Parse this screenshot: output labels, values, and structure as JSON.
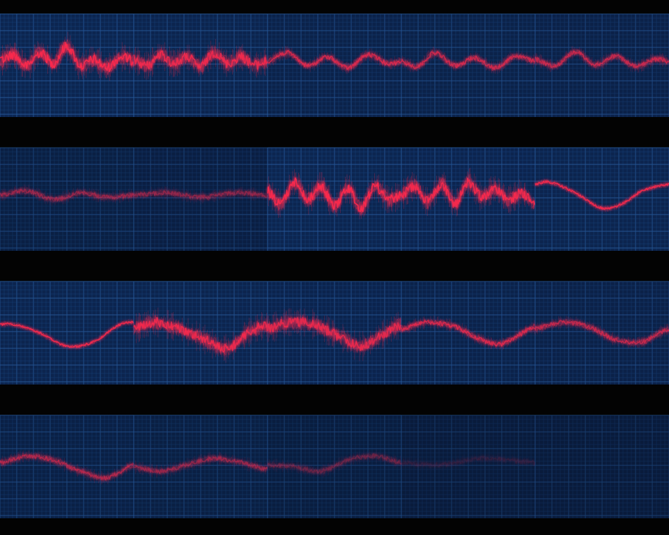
{
  "theme": {
    "background": "#030303",
    "panel_fill": "#0c2550",
    "grid_minor": "#1b4a85",
    "grid_major": "#2b62a8",
    "trace_color": "#ff2a4d"
  },
  "chart_data": [
    {
      "type": "line",
      "row": 1,
      "segments": [
        {
          "brightness": 1.0,
          "shape": "noisy",
          "points": [
            [
              0,
              0.0
            ],
            [
              0.1,
              0.15
            ],
            [
              0.2,
              -0.1
            ],
            [
              0.3,
              0.2
            ],
            [
              0.4,
              -0.05
            ],
            [
              0.5,
              0.35
            ],
            [
              0.6,
              -0.1
            ],
            [
              0.7,
              0.05
            ],
            [
              0.8,
              -0.15
            ],
            [
              0.9,
              0.1
            ],
            [
              1,
              0.0
            ]
          ]
        },
        {
          "brightness": 0.9,
          "shape": "noisy",
          "points": [
            [
              0,
              0.05
            ],
            [
              0.1,
              -0.1
            ],
            [
              0.2,
              0.15
            ],
            [
              0.3,
              -0.05
            ],
            [
              0.4,
              0.1
            ],
            [
              0.5,
              -0.12
            ],
            [
              0.6,
              0.2
            ],
            [
              0.7,
              -0.05
            ],
            [
              0.8,
              0.1
            ],
            [
              0.9,
              -0.08
            ],
            [
              1,
              0.0
            ]
          ]
        },
        {
          "brightness": 0.75,
          "shape": "wave",
          "points": [
            [
              0,
              0.0
            ],
            [
              0.15,
              0.2
            ],
            [
              0.3,
              -0.1
            ],
            [
              0.45,
              0.1
            ],
            [
              0.6,
              -0.15
            ],
            [
              0.75,
              0.15
            ],
            [
              0.9,
              -0.05
            ],
            [
              1,
              0.0
            ]
          ]
        },
        {
          "brightness": 0.7,
          "shape": "wave",
          "points": [
            [
              0,
              0.0
            ],
            [
              0.12,
              -0.12
            ],
            [
              0.25,
              0.2
            ],
            [
              0.4,
              -0.1
            ],
            [
              0.55,
              0.08
            ],
            [
              0.7,
              -0.15
            ],
            [
              0.85,
              0.12
            ],
            [
              1,
              0.0
            ]
          ]
        },
        {
          "brightness": 0.65,
          "shape": "wave",
          "points": [
            [
              0,
              0.05
            ],
            [
              0.15,
              -0.1
            ],
            [
              0.3,
              0.22
            ],
            [
              0.45,
              -0.08
            ],
            [
              0.6,
              0.12
            ],
            [
              0.75,
              -0.12
            ],
            [
              0.9,
              0.05
            ],
            [
              1,
              0.0
            ]
          ]
        }
      ]
    },
    {
      "type": "line",
      "row": 2,
      "segments": [
        {
          "brightness": 0.45,
          "shape": "wave",
          "points": [
            [
              0,
              0.0
            ],
            [
              0.2,
              0.1
            ],
            [
              0.4,
              -0.1
            ],
            [
              0.6,
              0.05
            ],
            [
              0.8,
              -0.05
            ],
            [
              1,
              0.0
            ]
          ]
        },
        {
          "brightness": 0.4,
          "shape": "wave",
          "points": [
            [
              0,
              0.0
            ],
            [
              0.25,
              0.05
            ],
            [
              0.5,
              -0.05
            ],
            [
              0.75,
              0.05
            ],
            [
              1,
              0.0
            ]
          ]
        },
        {
          "brightness": 1.0,
          "shape": "noisy",
          "points": [
            [
              0,
              0.1
            ],
            [
              0.1,
              -0.2
            ],
            [
              0.2,
              0.3
            ],
            [
              0.3,
              -0.1
            ],
            [
              0.4,
              0.2
            ],
            [
              0.5,
              -0.25
            ],
            [
              0.6,
              0.15
            ],
            [
              0.7,
              -0.3
            ],
            [
              0.8,
              0.2
            ],
            [
              0.9,
              -0.1
            ],
            [
              1,
              0.0
            ]
          ]
        },
        {
          "brightness": 0.95,
          "shape": "noisy",
          "points": [
            [
              0,
              0.0
            ],
            [
              0.1,
              0.2
            ],
            [
              0.2,
              -0.15
            ],
            [
              0.3,
              0.25
            ],
            [
              0.4,
              -0.2
            ],
            [
              0.5,
              0.3
            ],
            [
              0.6,
              -0.05
            ],
            [
              0.7,
              0.15
            ],
            [
              0.8,
              -0.1
            ],
            [
              0.9,
              0.05
            ],
            [
              1,
              -0.2
            ]
          ]
        },
        {
          "brightness": 0.9,
          "shape": "smooth",
          "points": [
            [
              0,
              0.25
            ],
            [
              0.1,
              0.3
            ],
            [
              0.3,
              0.05
            ],
            [
              0.5,
              -0.3
            ],
            [
              0.65,
              -0.2
            ],
            [
              0.8,
              0.1
            ],
            [
              1,
              0.25
            ]
          ]
        }
      ]
    },
    {
      "type": "line",
      "row": 3,
      "segments": [
        {
          "brightness": 0.9,
          "shape": "smooth",
          "points": [
            [
              0,
              0.1
            ],
            [
              0.1,
              0.1
            ],
            [
              0.3,
              -0.1
            ],
            [
              0.5,
              -0.4
            ],
            [
              0.7,
              -0.3
            ],
            [
              0.9,
              0.1
            ],
            [
              1,
              0.15
            ]
          ]
        },
        {
          "brightness": 0.9,
          "shape": "noisy",
          "points": [
            [
              0,
              0.0
            ],
            [
              0.15,
              0.15
            ],
            [
              0.3,
              0.05
            ],
            [
              0.5,
              -0.2
            ],
            [
              0.7,
              -0.45
            ],
            [
              0.85,
              -0.1
            ],
            [
              1,
              0.1
            ]
          ]
        },
        {
          "brightness": 0.85,
          "shape": "noisy",
          "points": [
            [
              0,
              0.0
            ],
            [
              0.15,
              0.15
            ],
            [
              0.35,
              0.1
            ],
            [
              0.55,
              -0.2
            ],
            [
              0.7,
              -0.4
            ],
            [
              0.85,
              -0.15
            ],
            [
              1,
              0.1
            ]
          ]
        },
        {
          "brightness": 0.75,
          "shape": "wave",
          "points": [
            [
              0,
              0.0
            ],
            [
              0.2,
              0.15
            ],
            [
              0.4,
              0.05
            ],
            [
              0.6,
              -0.25
            ],
            [
              0.75,
              -0.35
            ],
            [
              0.9,
              -0.1
            ],
            [
              1,
              0.05
            ]
          ]
        },
        {
          "brightness": 0.65,
          "shape": "wave",
          "points": [
            [
              0,
              0.0
            ],
            [
              0.2,
              0.15
            ],
            [
              0.4,
              0.05
            ],
            [
              0.6,
              -0.25
            ],
            [
              0.8,
              -0.3
            ],
            [
              1,
              0.0
            ]
          ]
        }
      ]
    },
    {
      "type": "line",
      "row": 4,
      "segments": [
        {
          "brightness": 0.55,
          "shape": "wave",
          "points": [
            [
              0,
              0.0
            ],
            [
              0.2,
              0.15
            ],
            [
              0.4,
              0.05
            ],
            [
              0.6,
              -0.2
            ],
            [
              0.8,
              -0.35
            ],
            [
              1,
              -0.05
            ]
          ]
        },
        {
          "brightness": 0.45,
          "shape": "wave",
          "points": [
            [
              0,
              -0.1
            ],
            [
              0.2,
              -0.2
            ],
            [
              0.4,
              -0.05
            ],
            [
              0.6,
              0.1
            ],
            [
              0.8,
              0.0
            ],
            [
              1,
              -0.15
            ]
          ]
        },
        {
          "brightness": 0.28,
          "shape": "wave",
          "points": [
            [
              0,
              -0.05
            ],
            [
              0.2,
              -0.1
            ],
            [
              0.4,
              -0.2
            ],
            [
              0.6,
              0.05
            ],
            [
              0.8,
              0.15
            ],
            [
              1,
              0.0
            ]
          ]
        },
        {
          "brightness": 0.1,
          "shape": "wave",
          "points": [
            [
              0,
              0.0
            ],
            [
              0.3,
              -0.05
            ],
            [
              0.6,
              0.1
            ],
            [
              1,
              0.0
            ]
          ]
        },
        {
          "brightness": 0.0,
          "shape": "none",
          "points": []
        }
      ]
    }
  ]
}
